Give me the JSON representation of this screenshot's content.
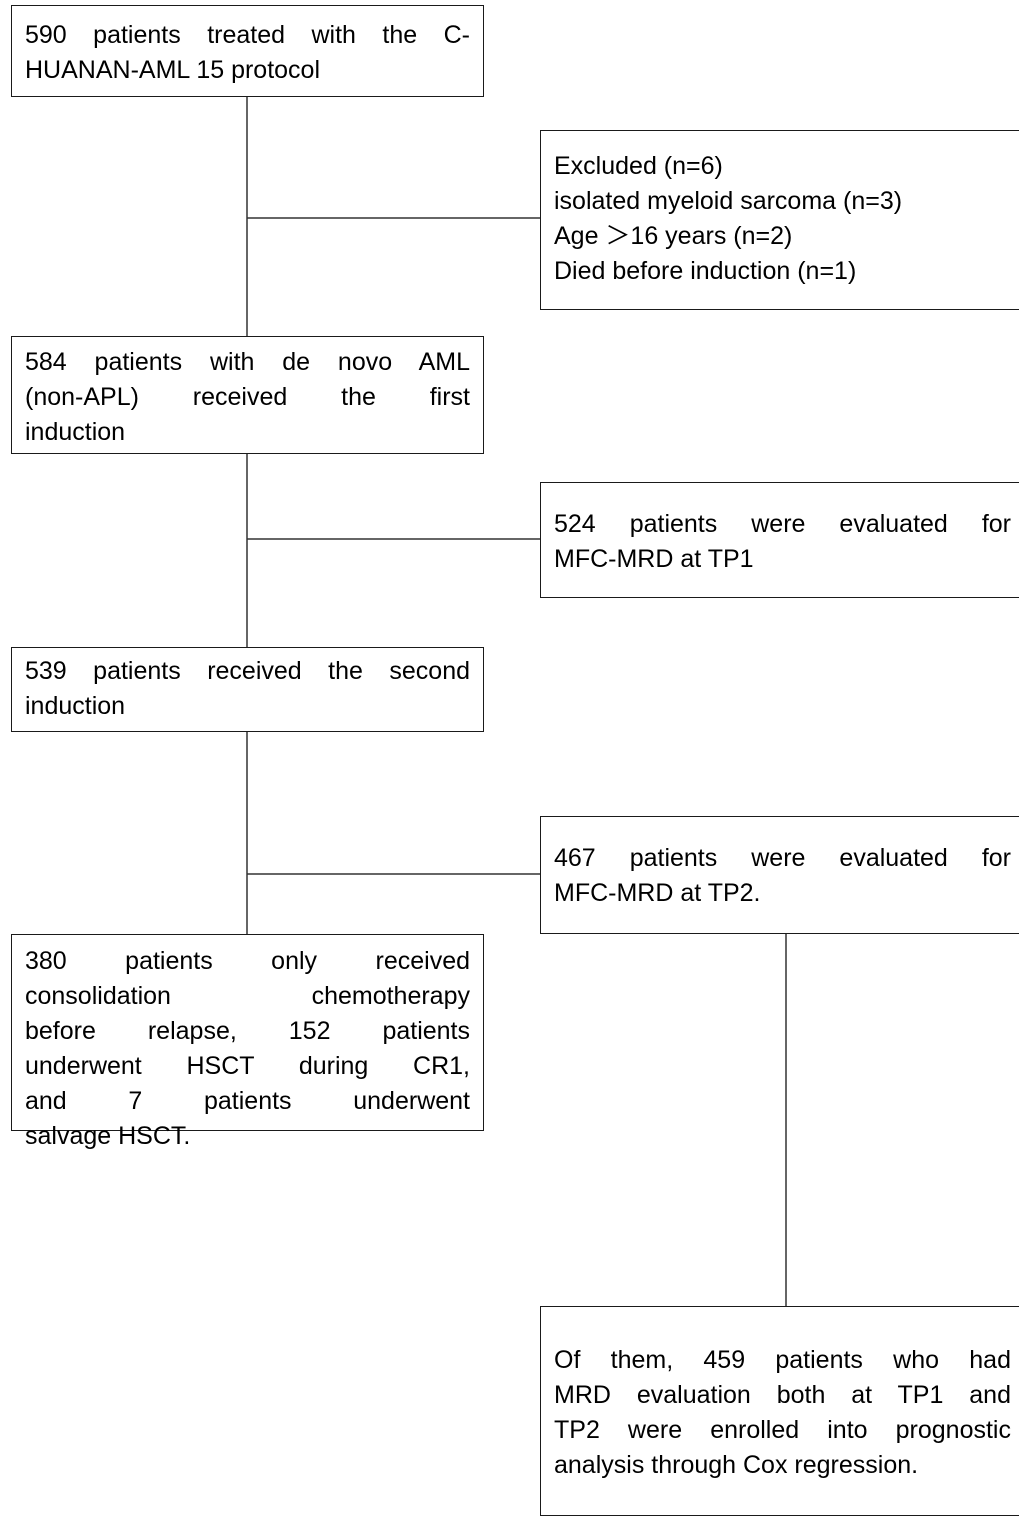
{
  "diagram": {
    "nodes": {
      "n1": [
        "590 patients treated with the C-",
        "HUANAN-AML 15 protocol"
      ],
      "n2": [
        "Excluded (n=6)",
        "isolated myeloid sarcoma (n=3)",
        "Age ＞16 years  (n=2)",
        "Died before induction (n=1)"
      ],
      "n3": [
        "584 patients with de novo AML",
        "(non-APL) received the first",
        "induction"
      ],
      "n4": [
        "524 patients were evaluated for",
        "MFC-MRD at TP1"
      ],
      "n5": [
        "539 patients received the second",
        "induction"
      ],
      "n6": [
        "467 patients were evaluated for",
        "MFC-MRD  at TP2."
      ],
      "n7": [
        "380 patients only received",
        "consolidation chemotherapy",
        "before relapse, 152 patients",
        "underwent HSCT during CR1,",
        "and 7 patients underwent",
        "salvage HSCT."
      ],
      "n8": [
        "Of them, 459 patients who had",
        "MRD evaluation both at TP1 and",
        "TP2 were enrolled into prognostic",
        "analysis through Cox regression."
      ]
    },
    "line_color": "#333333",
    "border_color": "#1a1a1a"
  }
}
